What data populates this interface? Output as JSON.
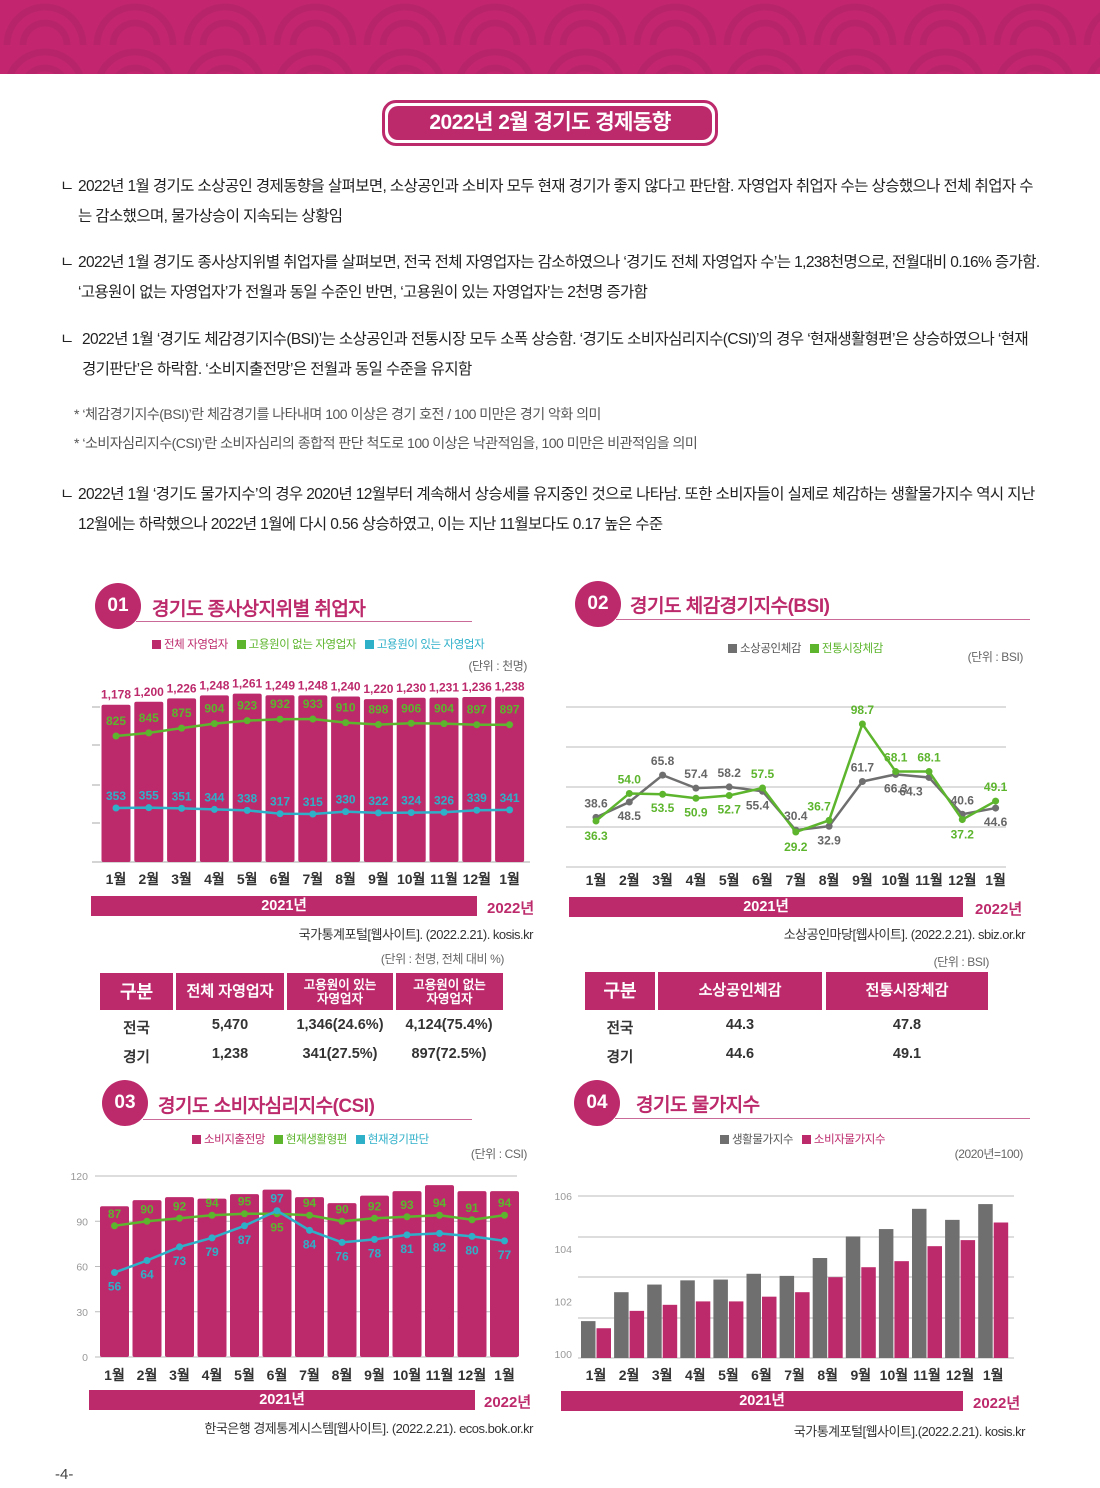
{
  "header": {
    "title": "2022년 2월 경기도 경제동향"
  },
  "bullet": "ㄴ",
  "paragraphs": [
    "2022년 1월 경기도 소상공인 경제동향을 살펴보면, 소상공인과 소비자 모두 현재 경기가 좋지 않다고 판단함. 자영업자 취업자 수는 상승했으나 전체 취업자 수는 감소했으며, 물가상승이 지속되는 상황임",
    "2022년 1월 경기도 종사상지위별 취업자를 살펴보면, 전국 전체 자영업자는 감소하였으나 ‘경기도 전체 자영업자 수’는 1,238천명으로, 전월대비 0.16% 증가함. ‘고용원이 없는 자영업자’가 전월과 동일 수준인 반면, ‘고용원이 있는 자영업자’는 2천명 증가함",
    "2022년 1월 ‘경기도 체감경기지수(BSI)’는 소상공인과 전통시장 모두 소폭 상승함. ‘경기도 소비자심리지수(CSI)’의 경우 ‘현재생활형편’은 상승하였으나 ‘현재경기판단’은 하락함. ‘소비지출전망’은 전월과 동일 수준을 유지함",
    "2022년 1월 ‘경기도 물가지수’의 경우 2020년 12월부터 계속해서 상승세를 유지중인 것으로 나타남. 또한 소비자들이 실제로 체감하는 생활물가지수 역시 지난 12월에는 하락했으나 2022년 1월에 다시 0.56 상승하였고, 이는 지난 11월보다도 0.17 높은 수준"
  ],
  "notes": [
    "* ‘체감경기지수(BSI)’란 체감경기를 나타내며 100 이상은 경기 호전 / 100 미만은 경기 악화 의미",
    "* ‘소비자심리지수(CSI)’란 소비자심리의 종합적 판단 척도로 100 이상은 낙관적임을, 100 미만은 비관적임을 의미"
  ],
  "colors": {
    "magenta": "#bd2a6c",
    "green": "#5db52e",
    "blue": "#2fb0c9",
    "gray": "#6f6f6f"
  },
  "months": [
    "1월",
    "2월",
    "3월",
    "4월",
    "5월",
    "6월",
    "7월",
    "8월",
    "9월",
    "10월",
    "11월",
    "12월",
    "1월"
  ],
  "years": {
    "y2021": "2021년",
    "y2022": "2022년"
  },
  "sections": [
    {
      "num": "01",
      "title": "경기도 종사상지위별 취업자",
      "unit": "(단위 : 천명)",
      "source": "국가통계포털[웹사이트]. (2022.2.21). kosis.kr"
    },
    {
      "num": "02",
      "title": "경기도 체감경기지수(BSI)",
      "unit": "(단위 : BSI)",
      "source": "소상공인마당[웹사이트]. (2022.2.21). sbiz.or.kr"
    },
    {
      "num": "03",
      "title": "경기도 소비자심리지수(CSI)",
      "unit": "(단위 : CSI)",
      "source": "한국은행 경제통계시스템[웹사이트]. (2022.2.21). ecos.bok.or.kr"
    },
    {
      "num": "04",
      "title": "경기도 물가지수",
      "unit": "(2020년=100)",
      "source": "국가통계포털[웹사이트].(2022.2.21). kosis.kr"
    }
  ],
  "chart_data": [
    {
      "type": "bar",
      "title": "경기도 종사상지위별 취업자",
      "categories": [
        "1월",
        "2월",
        "3월",
        "4월",
        "5월",
        "6월",
        "7월",
        "8월",
        "9월",
        "10월",
        "11월",
        "12월",
        "1월"
      ],
      "series": [
        {
          "name": "전체 자영업자",
          "kind": "bar",
          "color": "#bd2a6c",
          "values": [
            1178,
            1200,
            1226,
            1248,
            1261,
            1249,
            1248,
            1240,
            1220,
            1230,
            1231,
            1236,
            1238
          ],
          "labels": [
            "1,178",
            "1,200",
            "1,226",
            "1,248",
            "1,261",
            "1,249",
            "1,248",
            "1,240",
            "1,220",
            "1,230",
            "1,231",
            "1,236",
            "1,238"
          ]
        },
        {
          "name": "고용원이 없는 자영업자",
          "kind": "line",
          "color": "#5db52e",
          "values": [
            825,
            845,
            875,
            904,
            923,
            932,
            933,
            910,
            898,
            906,
            904,
            897,
            897
          ]
        },
        {
          "name": "고용원이 있는 자영업자",
          "kind": "line",
          "color": "#2fb0c9",
          "values": [
            353,
            355,
            351,
            344,
            338,
            317,
            315,
            330,
            322,
            324,
            326,
            339,
            341
          ]
        }
      ],
      "unit": "(단위 : 천명)",
      "legend": "top-center"
    },
    {
      "type": "line",
      "title": "경기도 체감경기지수(BSI)",
      "categories": [
        "1월",
        "2월",
        "3월",
        "4월",
        "5월",
        "6월",
        "7월",
        "8월",
        "9월",
        "10월",
        "11월",
        "12월",
        "1월"
      ],
      "series": [
        {
          "name": "소상공인체감",
          "color": "#6f6f6f",
          "values": [
            38.6,
            48.5,
            65.8,
            57.4,
            58.2,
            55.4,
            30.4,
            32.9,
            61.7,
            66.3,
            64.3,
            40.6,
            44.6
          ]
        },
        {
          "name": "전통시장체감",
          "color": "#5db52e",
          "values": [
            36.3,
            54.0,
            53.5,
            50.9,
            52.7,
            57.5,
            29.2,
            36.7,
            98.7,
            68.1,
            68.1,
            37.2,
            49.1
          ]
        }
      ],
      "unit": "(단위 : BSI)",
      "legend": "top-center"
    },
    {
      "type": "bar",
      "title": "경기도 소비자심리지수(CSI)",
      "categories": [
        "1월",
        "2월",
        "3월",
        "4월",
        "5월",
        "6월",
        "7월",
        "8월",
        "9월",
        "10월",
        "11월",
        "12월",
        "1월"
      ],
      "yticks": [
        0,
        30,
        60,
        90,
        120
      ],
      "ylim": [
        0,
        120
      ],
      "series": [
        {
          "name": "소비지출전망",
          "kind": "bar",
          "color": "#bd2a6c",
          "values": [
            100,
            104,
            106,
            105,
            108,
            111,
            106,
            102,
            107,
            110,
            114,
            110,
            110
          ]
        },
        {
          "name": "현재생활형편",
          "kind": "line",
          "color": "#5db52e",
          "values": [
            87,
            90,
            92,
            94,
            95,
            95,
            94,
            90,
            92,
            93,
            94,
            91,
            94
          ]
        },
        {
          "name": "현재경기판단",
          "kind": "line",
          "color": "#2fb0c9",
          "values": [
            56,
            64,
            73,
            79,
            87,
            97,
            84,
            76,
            78,
            81,
            82,
            80,
            77
          ]
        }
      ],
      "unit": "(단위 : CSI)",
      "legend": "top-center"
    },
    {
      "type": "bar",
      "title": "경기도 물가지수",
      "categories": [
        "1월",
        "2월",
        "3월",
        "4월",
        "5월",
        "6월",
        "7월",
        "8월",
        "9월",
        "10월",
        "11월",
        "12월",
        "1월"
      ],
      "yticks": [
        100,
        102,
        104,
        106
      ],
      "ylim": [
        100,
        106
      ],
      "series": [
        {
          "name": "생활물가지수",
          "color": "#6f6f6f",
          "values": [
            101.25,
            102.35,
            102.64,
            102.8,
            102.83,
            103.05,
            102.97,
            103.65,
            104.47,
            104.75,
            105.52,
            105.1,
            105.7
          ]
        },
        {
          "name": "소비자물가지수",
          "color": "#bd2a6c",
          "values": [
            100.98,
            101.64,
            101.87,
            102.0,
            102.0,
            102.18,
            102.35,
            102.92,
            103.3,
            103.53,
            104.1,
            104.33,
            105.0
          ]
        }
      ],
      "unit": "(2020년=100)",
      "legend": "top-center"
    }
  ],
  "table1": {
    "unit": "(단위 : 천명, 전체 대비 %)",
    "headers": [
      "구분",
      "전체 자영업자",
      "고용원이 있는\n자영업자",
      "고용원이 없는\n자영업자"
    ],
    "rows": [
      [
        "전국",
        "5,470",
        "1,346(24.6%)",
        "4,124(75.4%)"
      ],
      [
        "경기",
        "1,238",
        "341(27.5%)",
        "897(72.5%)"
      ]
    ]
  },
  "table2": {
    "unit": "(단위 : BSI)",
    "headers": [
      "구분",
      "소상공인체감",
      "전통시장체감"
    ],
    "rows": [
      [
        "전국",
        "44.3",
        "47.8"
      ],
      [
        "경기",
        "44.6",
        "49.1"
      ]
    ]
  },
  "page_number": "-4-"
}
